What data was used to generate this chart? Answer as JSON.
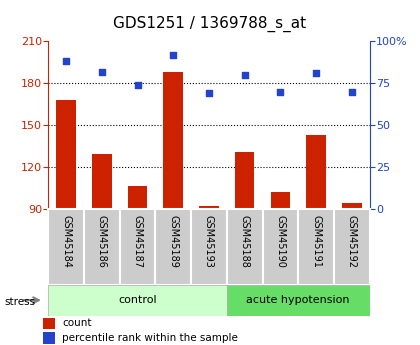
{
  "title": "GDS1251 / 1369788_s_at",
  "samples": [
    "GSM45184",
    "GSM45186",
    "GSM45187",
    "GSM45189",
    "GSM45193",
    "GSM45188",
    "GSM45190",
    "GSM45191",
    "GSM45192"
  ],
  "counts": [
    168,
    129,
    106,
    188,
    92,
    131,
    102,
    143,
    94
  ],
  "percentiles": [
    88,
    82,
    74,
    92,
    69,
    80,
    70,
    81,
    70
  ],
  "bar_color": "#cc2200",
  "dot_color": "#2244cc",
  "bar_bottom": 90,
  "ylim_left": [
    90,
    210
  ],
  "ylim_right": [
    0,
    100
  ],
  "yticks_left": [
    90,
    120,
    150,
    180,
    210
  ],
  "yticks_right": [
    0,
    25,
    50,
    75,
    100
  ],
  "grid_values": [
    120,
    150,
    180
  ],
  "control_color": "#ccffcc",
  "hypotension_color": "#66dd66",
  "sample_box_color": "#cccccc",
  "group_label_control": "control",
  "group_label_hypotension": "acute hypotension",
  "legend_count_label": "count",
  "legend_percentile_label": "percentile rank within the sample",
  "stress_label": "stress",
  "title_fontsize": 11,
  "tick_fontsize": 8,
  "label_fontsize": 7,
  "group_fontsize": 8
}
